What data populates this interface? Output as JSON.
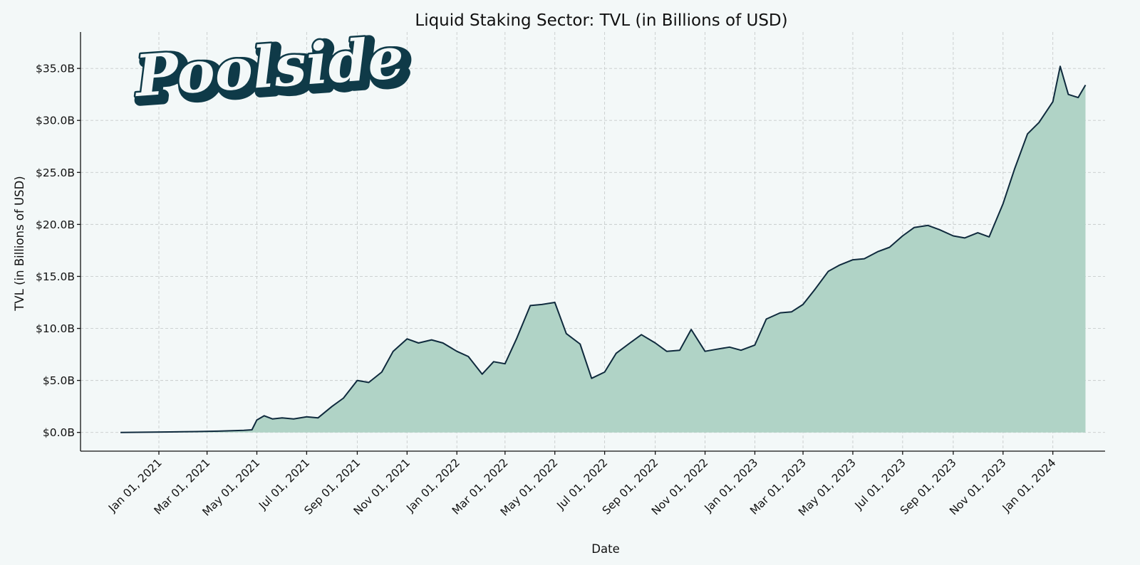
{
  "logo": {
    "text": "Poolside"
  },
  "chart_data": {
    "type": "area",
    "title": "Liquid Staking Sector: TVL (in Billions of USD)",
    "xlabel": "Date",
    "ylabel": "TVL (in Billions of USD)",
    "ylim": [
      -1.8,
      38.5
    ],
    "xlim": [
      "2020-09-27",
      "2024-03-05"
    ],
    "grid": true,
    "line_color": "#0f2a3d",
    "fill_color": "#b0d3c6",
    "y_ticks": [
      0,
      5,
      10,
      15,
      20,
      25,
      30,
      35
    ],
    "y_tick_labels": [
      "$0.0B",
      "$5.0B",
      "$10.0B",
      "$15.0B",
      "$20.0B",
      "$25.0B",
      "$30.0B",
      "$35.0B"
    ],
    "x_ticks": [
      "2021-01-01",
      "2021-03-01",
      "2021-05-01",
      "2021-07-01",
      "2021-09-01",
      "2021-11-01",
      "2022-01-01",
      "2022-03-01",
      "2022-05-01",
      "2022-07-01",
      "2022-09-01",
      "2022-11-01",
      "2023-01-01",
      "2023-03-01",
      "2023-05-01",
      "2023-07-01",
      "2023-09-01",
      "2023-11-01",
      "2024-01-01"
    ],
    "x_tick_labels": [
      "Jan 01, 2021",
      "Mar 01, 2021",
      "May 01, 2021",
      "Jul 01, 2021",
      "Sep 01, 2021",
      "Nov 01, 2021",
      "Jan 01, 2022",
      "Mar 01, 2022",
      "May 01, 2022",
      "Jul 01, 2022",
      "Sep 01, 2022",
      "Nov 01, 2022",
      "Jan 01, 2023",
      "Mar 01, 2023",
      "May 01, 2023",
      "Jul 01, 2023",
      "Sep 01, 2023",
      "Nov 01, 2023",
      "Jan 01, 2024"
    ],
    "series": [
      {
        "x": [
          "2020-11-15",
          "2020-12-15",
          "2021-01-15",
          "2021-02-15",
          "2021-03-15",
          "2021-04-15",
          "2021-04-25",
          "2021-05-01",
          "2021-05-10",
          "2021-05-20",
          "2021-06-01",
          "2021-06-15",
          "2021-07-01",
          "2021-07-15",
          "2021-08-01",
          "2021-08-15",
          "2021-09-01",
          "2021-09-15",
          "2021-10-01",
          "2021-10-15",
          "2021-11-01",
          "2021-11-15",
          "2021-12-01",
          "2021-12-15",
          "2022-01-01",
          "2022-01-15",
          "2022-02-01",
          "2022-02-15",
          "2022-03-01",
          "2022-03-15",
          "2022-04-01",
          "2022-04-15",
          "2022-05-01",
          "2022-05-15",
          "2022-06-01",
          "2022-06-15",
          "2022-07-01",
          "2022-07-15",
          "2022-08-01",
          "2022-08-15",
          "2022-09-01",
          "2022-09-15",
          "2022-10-01",
          "2022-10-15",
          "2022-11-01",
          "2022-11-15",
          "2022-12-01",
          "2022-12-15",
          "2023-01-01",
          "2023-01-15",
          "2023-02-01",
          "2023-02-15",
          "2023-03-01",
          "2023-03-15",
          "2023-04-01",
          "2023-04-15",
          "2023-05-01",
          "2023-05-15",
          "2023-06-01",
          "2023-06-15",
          "2023-07-01",
          "2023-07-15",
          "2023-08-01",
          "2023-08-15",
          "2023-09-01",
          "2023-09-15",
          "2023-10-01",
          "2023-10-15",
          "2023-11-01",
          "2023-11-15",
          "2023-12-01",
          "2023-12-15",
          "2024-01-01",
          "2024-01-10",
          "2024-01-20",
          "2024-02-01",
          "2024-02-10"
        ],
        "values": [
          0.0,
          0.02,
          0.05,
          0.08,
          0.12,
          0.2,
          0.25,
          1.2,
          1.6,
          1.3,
          1.4,
          1.3,
          1.5,
          1.4,
          2.5,
          3.3,
          5.0,
          4.8,
          5.8,
          7.8,
          9.0,
          8.6,
          8.9,
          8.6,
          7.8,
          7.3,
          5.6,
          6.8,
          6.6,
          9.0,
          12.2,
          12.3,
          12.5,
          9.5,
          8.5,
          5.2,
          5.8,
          7.6,
          8.6,
          9.4,
          8.6,
          7.8,
          7.9,
          9.9,
          7.8,
          8.0,
          8.2,
          7.9,
          8.4,
          10.9,
          11.5,
          11.6,
          12.3,
          13.7,
          15.5,
          16.1,
          16.6,
          16.7,
          17.4,
          17.8,
          18.9,
          19.7,
          19.9,
          19.5,
          18.9,
          18.7,
          19.2,
          18.8,
          22.0,
          25.3,
          28.7,
          29.8,
          31.8,
          35.2,
          32.5,
          32.2,
          33.4
        ]
      }
    ]
  }
}
